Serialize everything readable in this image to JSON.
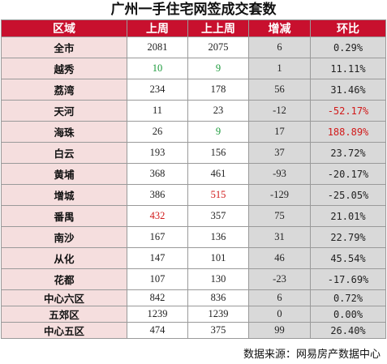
{
  "title": "广州一手住宅网签成交套数",
  "headers": [
    "区域",
    "上周",
    "上上周",
    "增减",
    "环比"
  ],
  "colors": {
    "header_bg": "#c8102e",
    "green": "#1a9a3a",
    "red": "#d11a1a"
  },
  "rows": [
    {
      "region": "全市",
      "last_week": "2081",
      "prev_week": "2075",
      "change": "6",
      "ratio": "0.29%"
    },
    {
      "region": "越秀",
      "last_week": "10",
      "prev_week": "9",
      "change": "1",
      "ratio": "11.11%"
    },
    {
      "region": "荔湾",
      "last_week": "234",
      "prev_week": "178",
      "change": "56",
      "ratio": "31.46%"
    },
    {
      "region": "天河",
      "last_week": "11",
      "prev_week": "23",
      "change": "-12",
      "ratio": "-52.17%"
    },
    {
      "region": "海珠",
      "last_week": "26",
      "prev_week": "9",
      "change": "17",
      "ratio": "188.89%"
    },
    {
      "region": "白云",
      "last_week": "193",
      "prev_week": "156",
      "change": "37",
      "ratio": "23.72%"
    },
    {
      "region": "黄埔",
      "last_week": "368",
      "prev_week": "461",
      "change": "-93",
      "ratio": "-20.17%"
    },
    {
      "region": "增城",
      "last_week": "386",
      "prev_week": "515",
      "change": "-129",
      "ratio": "-25.05%"
    },
    {
      "region": "番禺",
      "last_week": "432",
      "prev_week": "357",
      "change": "75",
      "ratio": "21.01%"
    },
    {
      "region": "南沙",
      "last_week": "167",
      "prev_week": "136",
      "change": "31",
      "ratio": "22.79%"
    },
    {
      "region": "从化",
      "last_week": "147",
      "prev_week": "101",
      "change": "46",
      "ratio": "45.54%"
    },
    {
      "region": "花都",
      "last_week": "107",
      "prev_week": "130",
      "change": "-23",
      "ratio": "-17.69%"
    },
    {
      "region": "中心六区",
      "last_week": "842",
      "prev_week": "836",
      "change": "6",
      "ratio": "0.72%"
    },
    {
      "region": "五郊区",
      "last_week": "1239",
      "prev_week": "1239",
      "change": "0",
      "ratio": "0.00%"
    },
    {
      "region": "中心五区",
      "last_week": "474",
      "prev_week": "375",
      "change": "99",
      "ratio": "26.40%"
    }
  ],
  "source": "数据来源：网易房产数据中心"
}
